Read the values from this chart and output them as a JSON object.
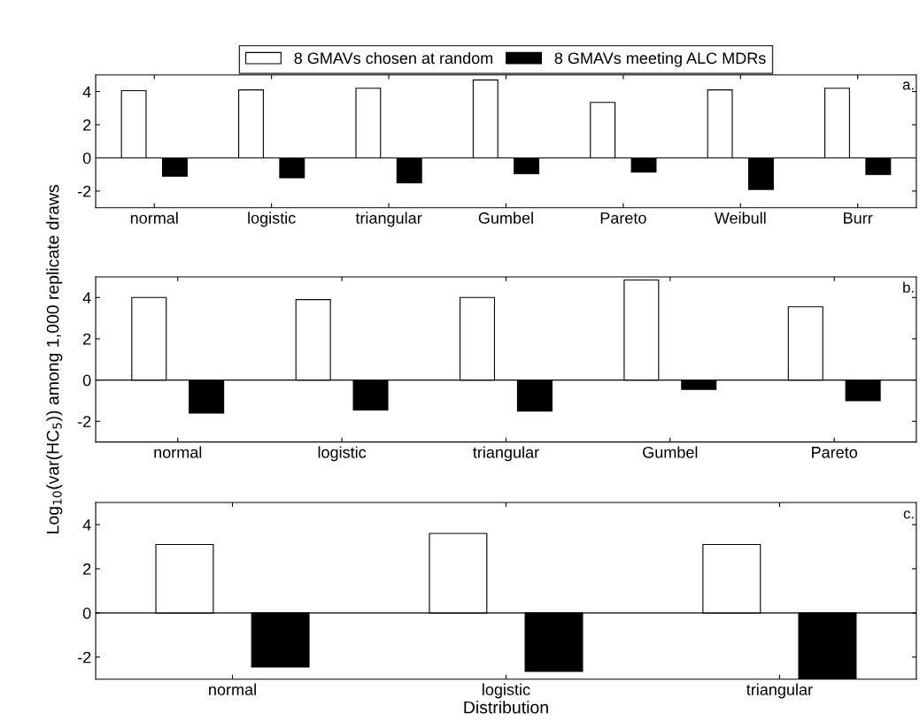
{
  "chart_data": [
    {
      "type": "bar",
      "categories": [
        "normal",
        "logistic",
        "triangular",
        "Gumbel",
        "Pareto",
        "Weibull",
        "Burr"
      ],
      "ylim": [
        -3,
        5
      ],
      "yticks": [
        -2,
        0,
        2,
        4
      ],
      "grid": false,
      "legend": "top",
      "annotations": [
        "a."
      ],
      "ref_lines": [
        {
          "axis": "y",
          "value": 0,
          "color": "#000000"
        }
      ],
      "series": [
        {
          "name": "8 GMAVs chosen at random",
          "color": "#ffffff",
          "values": [
            4.05,
            4.1,
            4.2,
            4.7,
            3.35,
            4.1,
            4.2
          ]
        },
        {
          "name": "8 GMAVs meeting ALC MDRs",
          "color": "#000000",
          "values": [
            -1.1,
            -1.2,
            -1.5,
            -0.95,
            -0.85,
            -1.9,
            -1.0
          ]
        }
      ]
    },
    {
      "type": "bar",
      "categories": [
        "normal",
        "logistic",
        "triangular",
        "Gumbel",
        "Pareto"
      ],
      "ylim": [
        -3,
        5
      ],
      "yticks": [
        -2,
        0,
        2,
        4
      ],
      "grid": false,
      "ylabel": "Log$_{10}$(var(HC$_{5}$)) among 1,000 replicate draws",
      "annotations": [
        "b."
      ],
      "ref_lines": [
        {
          "axis": "y",
          "value": 0,
          "color": "#000000"
        }
      ],
      "series": [
        {
          "color": "#ffffff",
          "values": [
            4.0,
            3.9,
            4.0,
            4.85,
            3.55
          ]
        },
        {
          "color": "#000000",
          "values": [
            -1.6,
            -1.45,
            -1.5,
            -0.45,
            -1.0
          ]
        }
      ]
    },
    {
      "type": "bar",
      "categories": [
        "normal",
        "logistic",
        "triangular"
      ],
      "ylim": [
        -3,
        5
      ],
      "yticks": [
        -2,
        0,
        2,
        4
      ],
      "grid": false,
      "xlabel": "Distribution",
      "annotations": [
        "c."
      ],
      "ref_lines": [
        {
          "axis": "y",
          "value": 0,
          "color": "#000000"
        }
      ],
      "series": [
        {
          "color": "#ffffff",
          "values": [
            3.1,
            3.6,
            3.1
          ]
        },
        {
          "color": "#000000",
          "values": [
            -2.45,
            -2.65,
            -3.0
          ]
        }
      ]
    }
  ]
}
